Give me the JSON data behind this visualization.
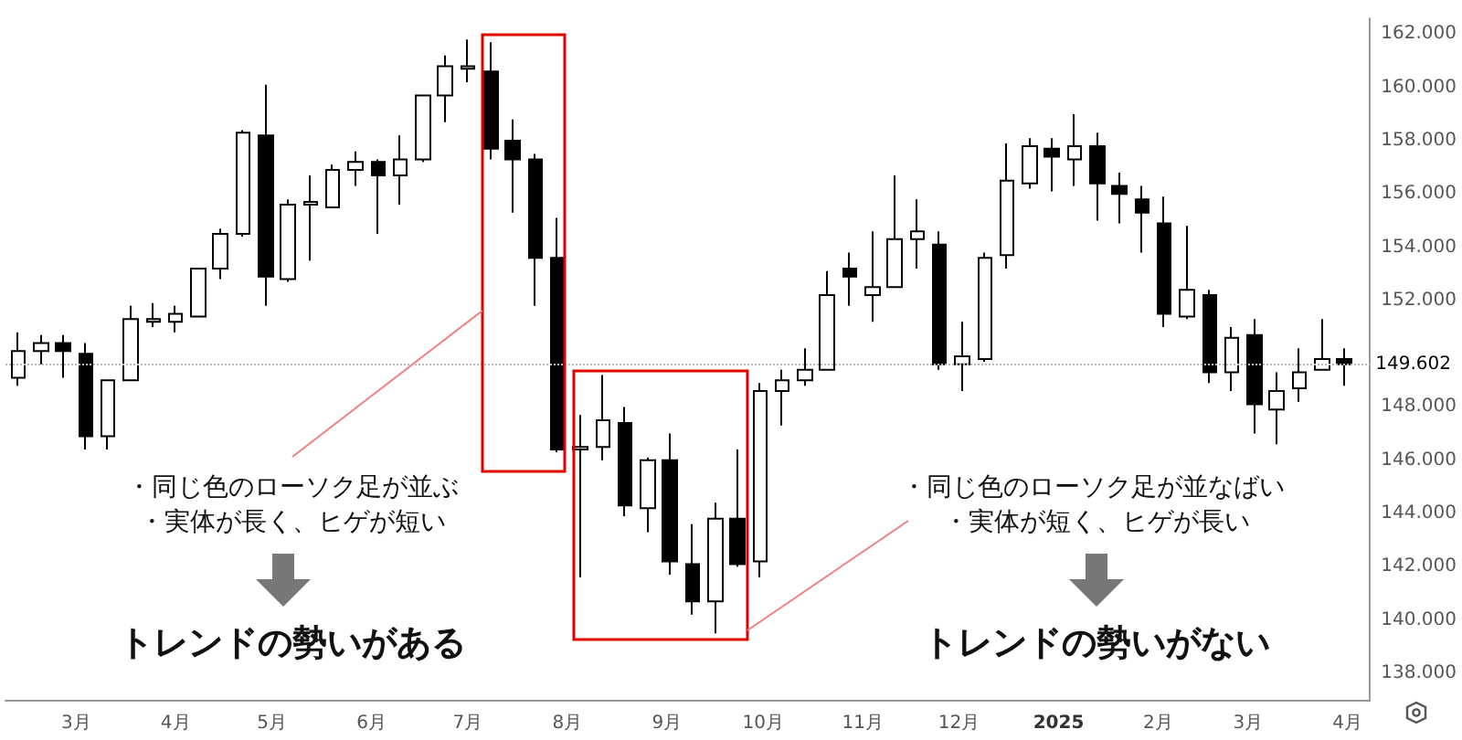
{
  "chart_data": {
    "type": "candlestick",
    "x": [
      "2024-02-12",
      "2024-02-19",
      "2024-02-26",
      "2024-03-04",
      "2024-03-11",
      "2024-03-18",
      "2024-03-25",
      "2024-04-01",
      "2024-04-08",
      "2024-04-15",
      "2024-04-22",
      "2024-04-29",
      "2024-05-06",
      "2024-05-13",
      "2024-05-20",
      "2024-05-27",
      "2024-06-03",
      "2024-06-10",
      "2024-06-17",
      "2024-06-24",
      "2024-07-01",
      "2024-07-08",
      "2024-07-15",
      "2024-07-22",
      "2024-07-29",
      "2024-08-05",
      "2024-08-12",
      "2024-08-19",
      "2024-08-26",
      "2024-09-02",
      "2024-09-09",
      "2024-09-16",
      "2024-09-23",
      "2024-09-30",
      "2024-10-07",
      "2024-10-14",
      "2024-10-21",
      "2024-10-28",
      "2024-11-04",
      "2024-11-11",
      "2024-11-18",
      "2024-11-25",
      "2024-12-02",
      "2024-12-09",
      "2024-12-16",
      "2024-12-23",
      "2024-12-30",
      "2025-01-06",
      "2025-01-13",
      "2025-01-20",
      "2025-01-27",
      "2025-02-03",
      "2025-02-10",
      "2025-02-17",
      "2025-02-24",
      "2025-03-03",
      "2025-03-10",
      "2025-03-17",
      "2025-03-24",
      "2025-03-31"
    ],
    "ohlc": [
      [
        149.1,
        150.8,
        148.8,
        150.1
      ],
      [
        150.1,
        150.7,
        149.6,
        150.4
      ],
      [
        150.4,
        150.7,
        149.1,
        150.1
      ],
      [
        150.0,
        150.4,
        146.4,
        146.9
      ],
      [
        146.9,
        149.0,
        146.4,
        149.0
      ],
      [
        149.0,
        151.8,
        149.0,
        151.3
      ],
      [
        151.2,
        151.9,
        151.0,
        151.3
      ],
      [
        151.2,
        151.8,
        150.8,
        151.5
      ],
      [
        151.4,
        153.2,
        151.4,
        153.2
      ],
      [
        153.2,
        154.7,
        152.8,
        154.5
      ],
      [
        154.5,
        158.4,
        154.4,
        158.3
      ],
      [
        158.2,
        160.1,
        151.8,
        152.9
      ],
      [
        152.8,
        155.8,
        152.7,
        155.6
      ],
      [
        155.6,
        156.7,
        153.5,
        155.7
      ],
      [
        155.5,
        157.1,
        155.5,
        156.9
      ],
      [
        156.9,
        157.6,
        156.3,
        157.2
      ],
      [
        157.2,
        157.3,
        154.5,
        156.7
      ],
      [
        156.7,
        158.2,
        155.6,
        157.3
      ],
      [
        157.3,
        159.7,
        157.2,
        159.7
      ],
      [
        159.7,
        161.2,
        158.7,
        160.8
      ],
      [
        160.7,
        161.8,
        160.2,
        160.8
      ],
      [
        160.6,
        161.7,
        157.3,
        157.7
      ],
      [
        158.0,
        158.8,
        155.3,
        157.3
      ],
      [
        157.3,
        157.5,
        151.8,
        153.6
      ],
      [
        153.6,
        155.1,
        146.3,
        146.4
      ],
      [
        146.4,
        147.7,
        141.6,
        146.5
      ],
      [
        146.5,
        149.2,
        146.0,
        147.5
      ],
      [
        147.4,
        148.0,
        143.9,
        144.3
      ],
      [
        144.2,
        146.1,
        143.3,
        146.0
      ],
      [
        146.0,
        147.0,
        141.7,
        142.2
      ],
      [
        142.1,
        143.6,
        140.2,
        140.7
      ],
      [
        140.7,
        144.4,
        139.5,
        143.8
      ],
      [
        143.8,
        146.4,
        142.0,
        142.1
      ],
      [
        142.2,
        148.9,
        141.6,
        148.6
      ],
      [
        148.6,
        149.4,
        147.3,
        149.0
      ],
      [
        149.0,
        150.2,
        148.8,
        149.4
      ],
      [
        149.4,
        153.1,
        149.4,
        152.2
      ],
      [
        153.2,
        153.8,
        151.8,
        152.9
      ],
      [
        152.2,
        154.6,
        151.2,
        152.5
      ],
      [
        152.5,
        156.7,
        152.5,
        154.3
      ],
      [
        154.3,
        155.8,
        153.2,
        154.6
      ],
      [
        154.1,
        154.6,
        149.4,
        149.6
      ],
      [
        149.6,
        151.2,
        148.6,
        149.9
      ],
      [
        149.8,
        153.8,
        149.7,
        153.6
      ],
      [
        153.7,
        157.9,
        153.2,
        156.5
      ],
      [
        156.4,
        158.1,
        156.2,
        157.8
      ],
      [
        157.7,
        158.1,
        156.1,
        157.4
      ],
      [
        157.3,
        159.0,
        156.3,
        157.8
      ],
      [
        157.8,
        158.3,
        155.0,
        156.4
      ],
      [
        156.3,
        156.8,
        154.9,
        156.0
      ],
      [
        155.8,
        156.3,
        153.8,
        155.3
      ],
      [
        154.9,
        155.9,
        151.0,
        151.5
      ],
      [
        151.4,
        154.8,
        151.3,
        152.4
      ],
      [
        152.2,
        152.4,
        148.9,
        149.3
      ],
      [
        149.3,
        151.0,
        148.6,
        150.6
      ],
      [
        150.7,
        151.3,
        147.0,
        148.1
      ],
      [
        147.9,
        149.3,
        146.6,
        148.6
      ],
      [
        148.7,
        150.2,
        148.2,
        149.3
      ],
      [
        149.4,
        151.3,
        149.4,
        149.8
      ],
      [
        149.8,
        150.2,
        148.8,
        149.602
      ]
    ],
    "color": "#000000",
    "xlim": [
      "2024-02-08",
      "2025-04-08"
    ],
    "xticks": [
      {
        "value": "2024-03-01",
        "label": "3月"
      },
      {
        "value": "2024-04-01",
        "label": "4月"
      },
      {
        "value": "2024-05-01",
        "label": "5月"
      },
      {
        "value": "2024-06-01",
        "label": "6月"
      },
      {
        "value": "2024-07-01",
        "label": "7月"
      },
      {
        "value": "2024-08-01",
        "label": "8月"
      },
      {
        "value": "2024-09-01",
        "label": "9月"
      },
      {
        "value": "2024-10-01",
        "label": "10月"
      },
      {
        "value": "2024-11-01",
        "label": "11月"
      },
      {
        "value": "2024-12-01",
        "label": "12月"
      },
      {
        "value": "2025-01-01",
        "label": "2025"
      },
      {
        "value": "2025-02-01",
        "label": "2月"
      },
      {
        "value": "2025-03-01",
        "label": "3月"
      },
      {
        "value": "2025-04-01",
        "label": "4月"
      }
    ],
    "ylim": [
      137.0,
      162.6
    ],
    "yticks": [
      {
        "value": 138,
        "label": "138.000"
      },
      {
        "value": 140,
        "label": "140.000"
      },
      {
        "value": 142,
        "label": "142.000"
      },
      {
        "value": 144,
        "label": "144.000"
      },
      {
        "value": 146,
        "label": "146.000"
      },
      {
        "value": 148,
        "label": "148.000"
      },
      {
        "value": 150,
        "label": null
      },
      {
        "value": 152,
        "label": "152.000"
      },
      {
        "value": 154,
        "label": "154.000"
      },
      {
        "value": 156,
        "label": "156.000"
      },
      {
        "value": 158,
        "label": "158.000"
      },
      {
        "value": 160,
        "label": "160.000"
      },
      {
        "value": 162,
        "label": "162.000"
      }
    ],
    "ref_lines": [
      {
        "axis": "y",
        "value": 149.602,
        "label": "149.602"
      }
    ],
    "grid": false,
    "annotations": [
      "・同じ色のローソク足が並ぶ",
      "・実体が長く、ヒゲが短い",
      "トレンドの勢いがある",
      "・同じ色のローソク足が並なばい",
      "・実体が短く、ヒゲが長い",
      "トレンドの勢いがない"
    ]
  }
}
